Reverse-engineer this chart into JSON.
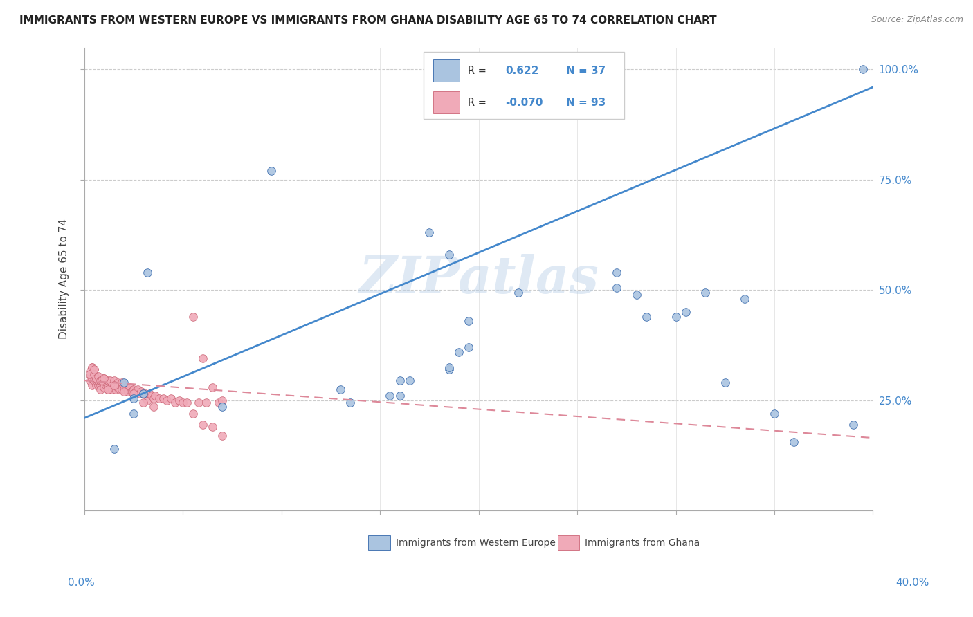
{
  "title": "IMMIGRANTS FROM WESTERN EUROPE VS IMMIGRANTS FROM GHANA DISABILITY AGE 65 TO 74 CORRELATION CHART",
  "source": "Source: ZipAtlas.com",
  "ylabel": "Disability Age 65 to 74",
  "blue_color": "#aac4e0",
  "pink_color": "#f0aab8",
  "blue_line_color": "#4488cc",
  "pink_line_color": "#dd8899",
  "blue_edge_color": "#3366aa",
  "pink_edge_color": "#cc6677",
  "watermark": "ZIPatlas",
  "blue_scatter_x": [
    0.245,
    0.25,
    0.095,
    0.175,
    0.185,
    0.22,
    0.27,
    0.28,
    0.285,
    0.3,
    0.305,
    0.195,
    0.195,
    0.19,
    0.185,
    0.165,
    0.155,
    0.13,
    0.02,
    0.025,
    0.025,
    0.03,
    0.07,
    0.16,
    0.16,
    0.315,
    0.325,
    0.335,
    0.35,
    0.36,
    0.39,
    0.395,
    0.015,
    0.032,
    0.27,
    0.185,
    0.135
  ],
  "blue_scatter_y": [
    0.97,
    0.97,
    0.77,
    0.63,
    0.58,
    0.495,
    0.505,
    0.49,
    0.44,
    0.44,
    0.45,
    0.43,
    0.37,
    0.36,
    0.32,
    0.295,
    0.26,
    0.275,
    0.29,
    0.255,
    0.22,
    0.265,
    0.235,
    0.295,
    0.26,
    0.495,
    0.29,
    0.48,
    0.22,
    0.155,
    0.195,
    1.0,
    0.14,
    0.54,
    0.54,
    0.325,
    0.245
  ],
  "pink_scatter_x": [
    0.003,
    0.003,
    0.003,
    0.004,
    0.004,
    0.004,
    0.005,
    0.005,
    0.005,
    0.006,
    0.006,
    0.006,
    0.007,
    0.007,
    0.008,
    0.008,
    0.008,
    0.009,
    0.009,
    0.01,
    0.01,
    0.01,
    0.011,
    0.011,
    0.012,
    0.012,
    0.012,
    0.013,
    0.014,
    0.014,
    0.015,
    0.015,
    0.016,
    0.016,
    0.017,
    0.017,
    0.018,
    0.018,
    0.019,
    0.019,
    0.02,
    0.02,
    0.021,
    0.022,
    0.022,
    0.023,
    0.024,
    0.025,
    0.026,
    0.027,
    0.028,
    0.029,
    0.03,
    0.031,
    0.032,
    0.033,
    0.034,
    0.035,
    0.036,
    0.038,
    0.04,
    0.042,
    0.044,
    0.046,
    0.048,
    0.05,
    0.052,
    0.055,
    0.058,
    0.06,
    0.062,
    0.065,
    0.068,
    0.07,
    0.003,
    0.004,
    0.005,
    0.005,
    0.006,
    0.007,
    0.008,
    0.009,
    0.01,
    0.012,
    0.015,
    0.02,
    0.025,
    0.03,
    0.035,
    0.055,
    0.06,
    0.065,
    0.07
  ],
  "pink_scatter_y": [
    0.305,
    0.295,
    0.315,
    0.3,
    0.285,
    0.325,
    0.305,
    0.295,
    0.32,
    0.285,
    0.295,
    0.3,
    0.285,
    0.295,
    0.285,
    0.275,
    0.295,
    0.3,
    0.295,
    0.285,
    0.28,
    0.3,
    0.285,
    0.29,
    0.275,
    0.28,
    0.295,
    0.295,
    0.285,
    0.275,
    0.28,
    0.295,
    0.285,
    0.275,
    0.29,
    0.28,
    0.285,
    0.275,
    0.29,
    0.275,
    0.285,
    0.275,
    0.28,
    0.275,
    0.27,
    0.28,
    0.27,
    0.275,
    0.27,
    0.275,
    0.265,
    0.27,
    0.265,
    0.265,
    0.25,
    0.265,
    0.26,
    0.255,
    0.26,
    0.255,
    0.255,
    0.25,
    0.255,
    0.245,
    0.25,
    0.245,
    0.245,
    0.44,
    0.245,
    0.345,
    0.245,
    0.28,
    0.245,
    0.25,
    0.31,
    0.325,
    0.31,
    0.32,
    0.3,
    0.305,
    0.295,
    0.295,
    0.3,
    0.275,
    0.285,
    0.27,
    0.265,
    0.245,
    0.235,
    0.22,
    0.195,
    0.19,
    0.17
  ],
  "blue_trendline_x": [
    0.0,
    0.4
  ],
  "blue_trendline_y": [
    0.21,
    0.96
  ],
  "pink_trendline_x": [
    0.0,
    0.4
  ],
  "pink_trendline_y": [
    0.295,
    0.165
  ],
  "xmin": 0.0,
  "xmax": 0.4,
  "ymin": 0.0,
  "ymax": 1.05,
  "ytick_vals": [
    0.25,
    0.5,
    0.75,
    1.0
  ],
  "ytick_labels": [
    "25.0%",
    "50.0%",
    "75.0%",
    "100.0%"
  ],
  "xtick_vals": [
    0.0,
    0.05,
    0.1,
    0.15,
    0.2,
    0.25,
    0.3,
    0.35,
    0.4
  ],
  "legend_r1_val": "0.622",
  "legend_n1": "N = 37",
  "legend_r2_val": "-0.070",
  "legend_n2": "N = 93",
  "bottom_label1": "Immigrants from Western Europe",
  "bottom_label2": "Immigrants from Ghana"
}
